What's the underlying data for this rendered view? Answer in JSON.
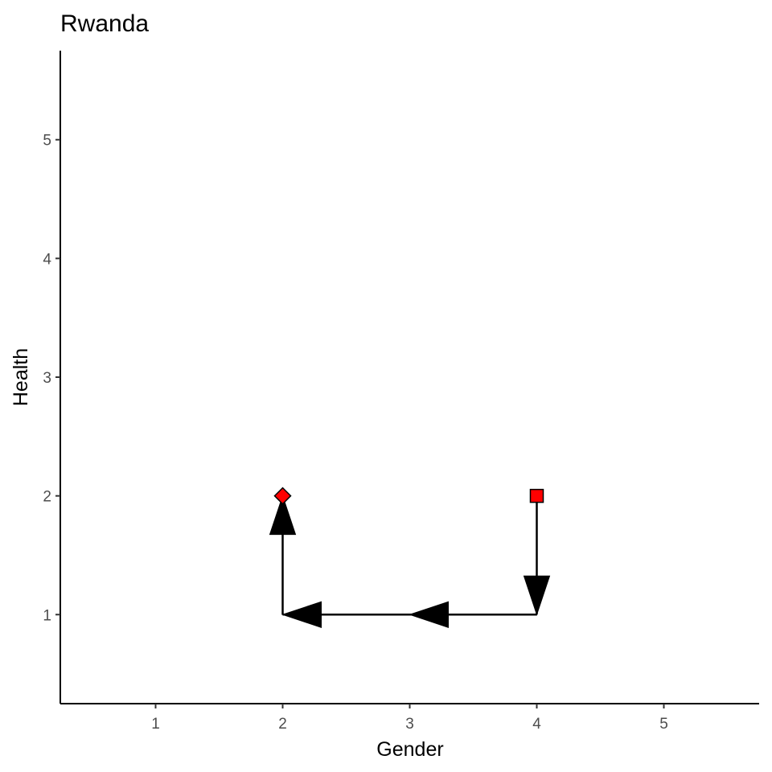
{
  "chart_data": {
    "type": "path-scatter",
    "title": "Rwanda",
    "xlabel": "Gender",
    "ylabel": "Health",
    "xlim": [
      0.25,
      5.75
    ],
    "ylim": [
      0.25,
      5.75
    ],
    "x_ticks": [
      1,
      2,
      3,
      4,
      5
    ],
    "y_ticks": [
      1,
      2,
      3,
      4,
      5
    ],
    "grid": false,
    "legend": "none",
    "path": [
      {
        "x": 4,
        "y": 2
      },
      {
        "x": 4,
        "y": 1
      },
      {
        "x": 2,
        "y": 1
      },
      {
        "x": 2,
        "y": 2
      }
    ],
    "arrows": [
      {
        "from": [
          4,
          2
        ],
        "to": [
          4,
          1
        ]
      },
      {
        "from": [
          4,
          1
        ],
        "to": [
          3,
          1
        ]
      },
      {
        "from": [
          3,
          1
        ],
        "to": [
          2,
          1
        ]
      },
      {
        "from": [
          2,
          1
        ],
        "to": [
          2,
          2
        ]
      }
    ],
    "points": [
      {
        "x": 4,
        "y": 2,
        "shape": "square",
        "role": "start"
      },
      {
        "x": 2,
        "y": 2,
        "shape": "diamond",
        "role": "end"
      }
    ],
    "point_fill": "#ff0000",
    "point_stroke": "#000000",
    "line_color": "#000000"
  }
}
